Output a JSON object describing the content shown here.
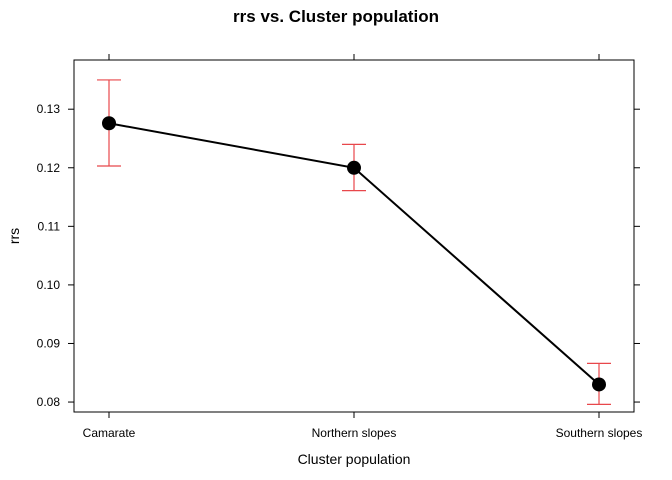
{
  "chart_data": {
    "type": "line",
    "title": "rrs vs. Cluster population",
    "xlabel": "Cluster population",
    "ylabel": "rrs",
    "categories": [
      "Camarate",
      "Northern slopes",
      "Southern slopes"
    ],
    "series": [
      {
        "values": [
          0.1276,
          0.12,
          0.083
        ],
        "lower": [
          0.1203,
          0.1161,
          0.0796
        ],
        "upper": [
          0.135,
          0.124,
          0.0866
        ]
      }
    ],
    "yticks": [
      0.08,
      0.09,
      0.1,
      0.11,
      0.12,
      0.13
    ],
    "ytick_labels": [
      "0.08",
      "0.09",
      "0.10",
      "0.11",
      "0.12",
      "0.13"
    ],
    "ylim": [
      0.0783,
      0.1384
    ],
    "grid": false,
    "legend": "none",
    "colors": {
      "line": "#000000",
      "point": "#000000",
      "errorbar": "#e8474b",
      "axis": "#000000"
    }
  }
}
